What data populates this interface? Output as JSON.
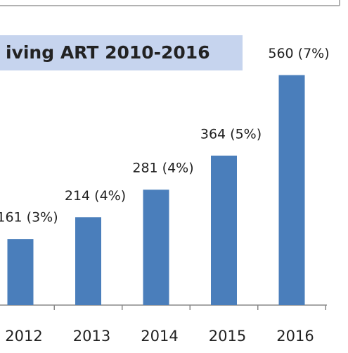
{
  "chart_data": {
    "type": "bar",
    "title": "iving ART 2010-2016",
    "categories": [
      "2012",
      "2013",
      "2014",
      "2015",
      "2016"
    ],
    "values": [
      161,
      214,
      281,
      364,
      560
    ],
    "value_labels": [
      "161 (3%)",
      "214 (4%)",
      "281 (4%)",
      "364 (5%)",
      "560 (7%)"
    ],
    "color": "#4a7ebb",
    "ylim": [
      0,
      700
    ]
  }
}
